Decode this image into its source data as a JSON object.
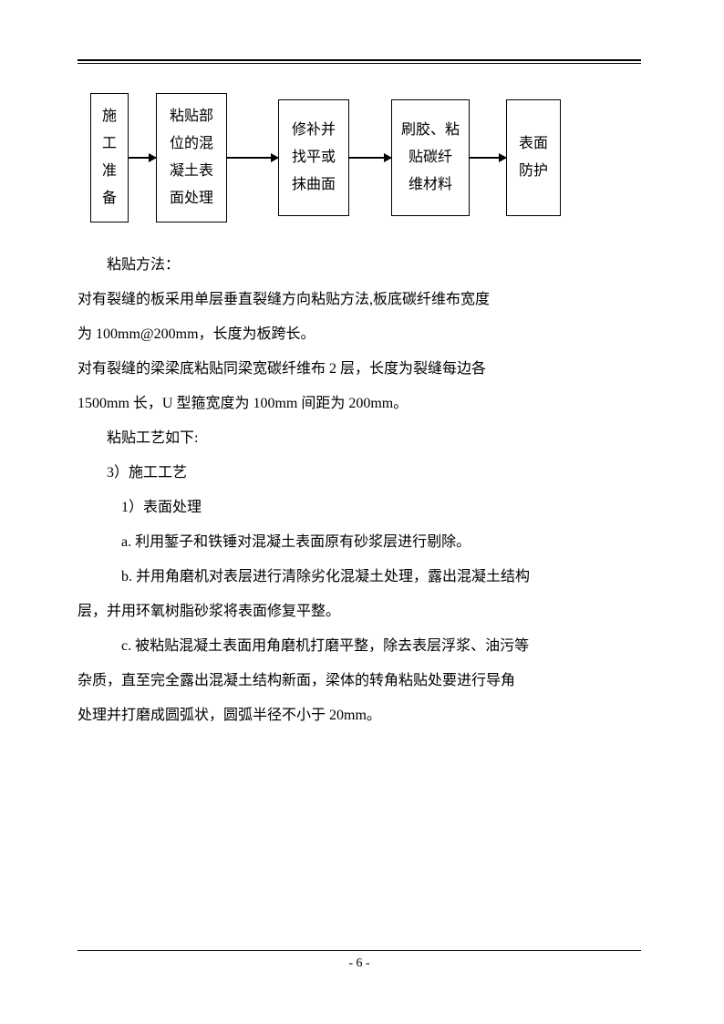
{
  "flow": {
    "box1": "施\n工\n准\n备",
    "box2": "粘贴部\n位的混\n凝土表\n面处理",
    "box3": "修补并\n找平或\n抹曲面",
    "box4": "刷胶、粘\n贴碳纤\n维材料",
    "box5": "表面\n防护"
  },
  "paragraphs": {
    "p1": "粘贴方法：",
    "p2": "对有裂缝的板采用单层垂直裂缝方向粘贴方法,板底碳纤维布宽度",
    "p3": "为 100mm@200mm，长度为板跨长。",
    "p4": "对有裂缝的梁梁底粘贴同梁宽碳纤维布 2 层，长度为裂缝每边各",
    "p5": "1500mm 长，U 型箍宽度为 100mm 间距为 200mm。",
    "p6": "粘贴工艺如下:",
    "p7": "3）施工工艺",
    "p8": "1）表面处理",
    "p9": "a. 利用錾子和铁锤对混凝土表面原有砂浆层进行剔除。",
    "p10": "b. 并用角磨机对表层进行清除劣化混凝土处理，露出混凝土结构",
    "p11": "层，并用环氧树脂砂浆将表面修复平整。",
    "p12": "c. 被粘贴混凝土表面用角磨机打磨平整，除去表层浮浆、油污等",
    "p13": "杂质，直至完全露出混凝土结构新面，梁体的转角粘贴处要进行导角",
    "p14": "处理并打磨成圆弧状，圆弧半径不小于 20mm。"
  },
  "pagenum": "- 6 -"
}
